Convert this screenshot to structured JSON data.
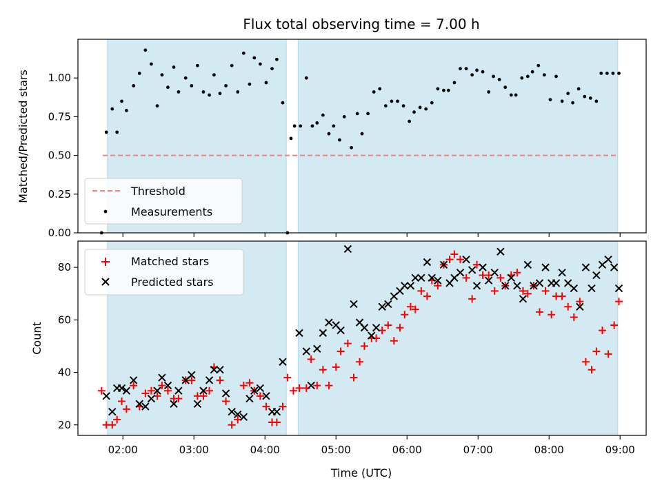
{
  "title": "Flux total observing time = 7.00 h",
  "colors": {
    "shade": "#add8e6",
    "threshold": "#f08080",
    "measurement": "#000000",
    "matched": "#ff0000",
    "predicted": "#000000"
  },
  "chart_data": [
    {
      "type": "scatter",
      "ylabel": "Matched/Predicted stars",
      "xlabel": "",
      "xlim": [
        "01:22",
        "09:22"
      ],
      "ylim": [
        0,
        1.25
      ],
      "yticks": [
        0.0,
        0.25,
        0.5,
        0.75,
        1.0
      ],
      "ytick_labels": [
        "0.00",
        "0.25",
        "0.50",
        "0.75",
        "1.00"
      ],
      "shaded_intervals": [
        [
          "01:47",
          "04:18"
        ],
        [
          "04:28",
          "08:58"
        ]
      ],
      "legend_position": "lower-left",
      "legend": [
        "Threshold",
        "Measurements"
      ],
      "threshold": {
        "name": "Threshold",
        "value": 0.5,
        "x": [
          "01:43",
          "08:58"
        ]
      },
      "series": [
        {
          "name": "Measurements",
          "marker": "dot",
          "x": [
            "01:42",
            "01:46",
            "01:51",
            "01:55",
            "01:59",
            "02:03",
            "02:09",
            "02:14",
            "02:19",
            "02:24",
            "02:29",
            "02:33",
            "02:38",
            "02:43",
            "02:47",
            "02:53",
            "02:58",
            "03:03",
            "03:08",
            "03:13",
            "03:17",
            "03:22",
            "03:27",
            "03:32",
            "03:37",
            "03:42",
            "03:47",
            "03:51",
            "03:56",
            "04:01",
            "04:06",
            "04:10",
            "04:15",
            "04:19",
            "04:22",
            "04:25",
            "04:30",
            "04:35",
            "04:40",
            "04:44",
            "04:49",
            "04:54",
            "04:58",
            "05:03",
            "05:07",
            "05:13",
            "05:18",
            "05:22",
            "05:27",
            "05:32",
            "05:37",
            "05:42",
            "05:47",
            "05:52",
            "05:57",
            "06:02",
            "06:06",
            "06:11",
            "06:16",
            "06:21",
            "06:26",
            "06:31",
            "06:35",
            "06:40",
            "06:45",
            "06:50",
            "06:55",
            "06:59",
            "07:04",
            "07:09",
            "07:13",
            "07:18",
            "07:23",
            "07:28",
            "07:32",
            "07:37",
            "07:42",
            "07:46",
            "07:51",
            "07:56",
            "08:01",
            "08:06",
            "08:11",
            "08:16",
            "08:20",
            "08:25",
            "08:30",
            "08:35",
            "08:40",
            "08:44",
            "08:49",
            "08:54",
            "08:59"
          ],
          "y": [
            0.0,
            0.65,
            0.8,
            0.65,
            0.85,
            0.79,
            0.95,
            1.03,
            1.18,
            1.09,
            0.82,
            1.02,
            0.94,
            1.07,
            0.91,
            1.0,
            0.95,
            1.08,
            0.91,
            0.89,
            1.02,
            0.9,
            0.95,
            1.08,
            0.91,
            1.16,
            0.96,
            1.13,
            1.09,
            0.97,
            1.06,
            1.12,
            0.84,
            0.0,
            0.61,
            0.69,
            0.69,
            1.0,
            0.69,
            0.71,
            0.76,
            0.64,
            0.69,
            0.6,
            0.75,
            0.55,
            0.77,
            0.64,
            0.77,
            0.91,
            0.93,
            0.82,
            0.85,
            0.85,
            0.82,
            0.72,
            0.78,
            0.81,
            0.8,
            0.84,
            0.93,
            0.92,
            0.92,
            0.97,
            1.06,
            1.06,
            1.02,
            1.05,
            1.04,
            0.91,
            1.01,
            0.99,
            0.94,
            0.89,
            0.89,
            1.0,
            1.01,
            1.04,
            1.08,
            1.02,
            0.86,
            1.01,
            0.85,
            0.9,
            0.84,
            0.93,
            0.88,
            0.87,
            0.85,
            1.03,
            1.03,
            1.03,
            1.03
          ]
        }
      ]
    },
    {
      "type": "scatter",
      "ylabel": "Count",
      "xlabel": "Time (UTC)",
      "xlim": [
        "01:22",
        "09:22"
      ],
      "ylim": [
        16,
        90
      ],
      "yticks": [
        20,
        40,
        60,
        80
      ],
      "ytick_labels": [
        "20",
        "40",
        "60",
        "80"
      ],
      "xticks": [
        "02:00",
        "03:00",
        "04:00",
        "05:00",
        "06:00",
        "07:00",
        "08:00",
        "09:00"
      ],
      "shaded_intervals": [
        [
          "01:47",
          "04:18"
        ],
        [
          "04:28",
          "08:58"
        ]
      ],
      "legend_position": "upper-left",
      "legend": [
        "Matched stars",
        "Predicted stars"
      ],
      "series": [
        {
          "name": "Matched stars",
          "marker": "plus",
          "x": [
            "01:42",
            "01:46",
            "01:51",
            "01:55",
            "01:59",
            "02:03",
            "02:09",
            "02:14",
            "02:19",
            "02:24",
            "02:29",
            "02:33",
            "02:38",
            "02:43",
            "02:47",
            "02:53",
            "02:58",
            "03:03",
            "03:08",
            "03:13",
            "03:17",
            "03:22",
            "03:27",
            "03:32",
            "03:37",
            "03:42",
            "03:47",
            "03:51",
            "03:56",
            "04:01",
            "04:06",
            "04:10",
            "04:15",
            "04:19",
            "04:24",
            "04:29",
            "04:35",
            "04:39",
            "04:44",
            "04:49",
            "04:54",
            "05:00",
            "05:04",
            "05:10",
            "05:15",
            "05:20",
            "05:24",
            "05:30",
            "05:34",
            "05:39",
            "05:44",
            "05:49",
            "05:54",
            "05:58",
            "06:03",
            "06:07",
            "06:12",
            "06:17",
            "06:21",
            "06:26",
            "06:31",
            "06:36",
            "06:40",
            "06:45",
            "06:50",
            "06:55",
            "06:59",
            "07:04",
            "07:09",
            "07:14",
            "07:19",
            "07:23",
            "07:28",
            "07:33",
            "07:38",
            "07:42",
            "07:47",
            "07:52",
            "07:57",
            "08:02",
            "08:06",
            "08:11",
            "08:16",
            "08:21",
            "08:26",
            "08:31",
            "08:36",
            "08:40",
            "08:45",
            "08:50",
            "08:55",
            "08:59"
          ],
          "y": [
            33,
            20,
            20,
            22,
            29,
            26,
            35,
            27,
            32,
            33,
            31,
            35,
            33,
            30,
            30,
            37,
            37,
            31,
            31,
            33,
            42,
            37,
            29,
            20,
            22,
            35,
            36,
            33,
            31,
            27,
            21,
            21,
            27,
            38,
            33,
            34,
            34,
            45,
            35,
            41,
            35,
            42,
            48,
            51,
            38,
            44,
            50,
            53,
            53,
            56,
            58,
            52,
            57,
            62,
            65,
            64,
            71,
            69,
            75,
            73,
            81,
            83,
            85,
            83,
            76,
            68,
            81,
            77,
            77,
            71,
            76,
            73,
            77,
            78,
            71,
            70,
            73,
            63,
            71,
            62,
            69,
            69,
            65,
            61,
            67,
            44,
            41,
            48,
            56,
            47,
            58,
            67
          ]
        },
        {
          "name": "Predicted stars",
          "marker": "x",
          "x": [
            "01:46",
            "01:51",
            "01:55",
            "01:59",
            "02:03",
            "02:09",
            "02:14",
            "02:19",
            "02:24",
            "02:29",
            "02:33",
            "02:38",
            "02:43",
            "02:47",
            "02:53",
            "02:58",
            "03:03",
            "03:08",
            "03:13",
            "03:17",
            "03:22",
            "03:27",
            "03:32",
            "03:37",
            "03:42",
            "03:47",
            "03:51",
            "03:56",
            "04:01",
            "04:06",
            "04:10",
            "04:15",
            "04:29",
            "04:35",
            "04:39",
            "04:44",
            "04:49",
            "04:54",
            "05:00",
            "05:04",
            "05:10",
            "05:15",
            "05:20",
            "05:24",
            "05:30",
            "05:34",
            "05:39",
            "05:44",
            "05:49",
            "05:54",
            "05:58",
            "06:03",
            "06:07",
            "06:12",
            "06:17",
            "06:21",
            "06:26",
            "06:31",
            "06:36",
            "06:40",
            "06:45",
            "06:50",
            "06:55",
            "06:59",
            "07:04",
            "07:09",
            "07:14",
            "07:19",
            "07:23",
            "07:28",
            "07:33",
            "07:38",
            "07:42",
            "07:47",
            "07:52",
            "07:57",
            "08:02",
            "08:06",
            "08:11",
            "08:16",
            "08:21",
            "08:26",
            "08:31",
            "08:36",
            "08:40",
            "08:45",
            "08:50",
            "08:55",
            "08:59"
          ],
          "y": [
            31,
            25,
            34,
            34,
            33,
            37,
            28,
            27,
            30,
            33,
            38,
            35,
            28,
            33,
            37,
            39,
            28,
            33,
            37,
            41,
            41,
            32,
            25,
            24,
            23,
            30,
            33,
            34,
            31,
            25,
            25,
            44,
            55,
            48,
            35,
            49,
            55,
            59,
            58,
            56,
            87,
            66,
            59,
            57,
            54,
            57,
            65,
            66,
            69,
            71,
            73,
            73,
            76,
            76,
            82,
            76,
            75,
            81,
            74,
            76,
            78,
            83,
            79,
            73,
            80,
            75,
            78,
            86,
            73,
            76,
            73,
            68,
            81,
            73,
            74,
            80,
            74,
            74,
            78,
            74,
            72,
            65,
            80,
            72,
            77,
            81,
            83,
            80,
            72
          ]
        }
      ]
    }
  ]
}
